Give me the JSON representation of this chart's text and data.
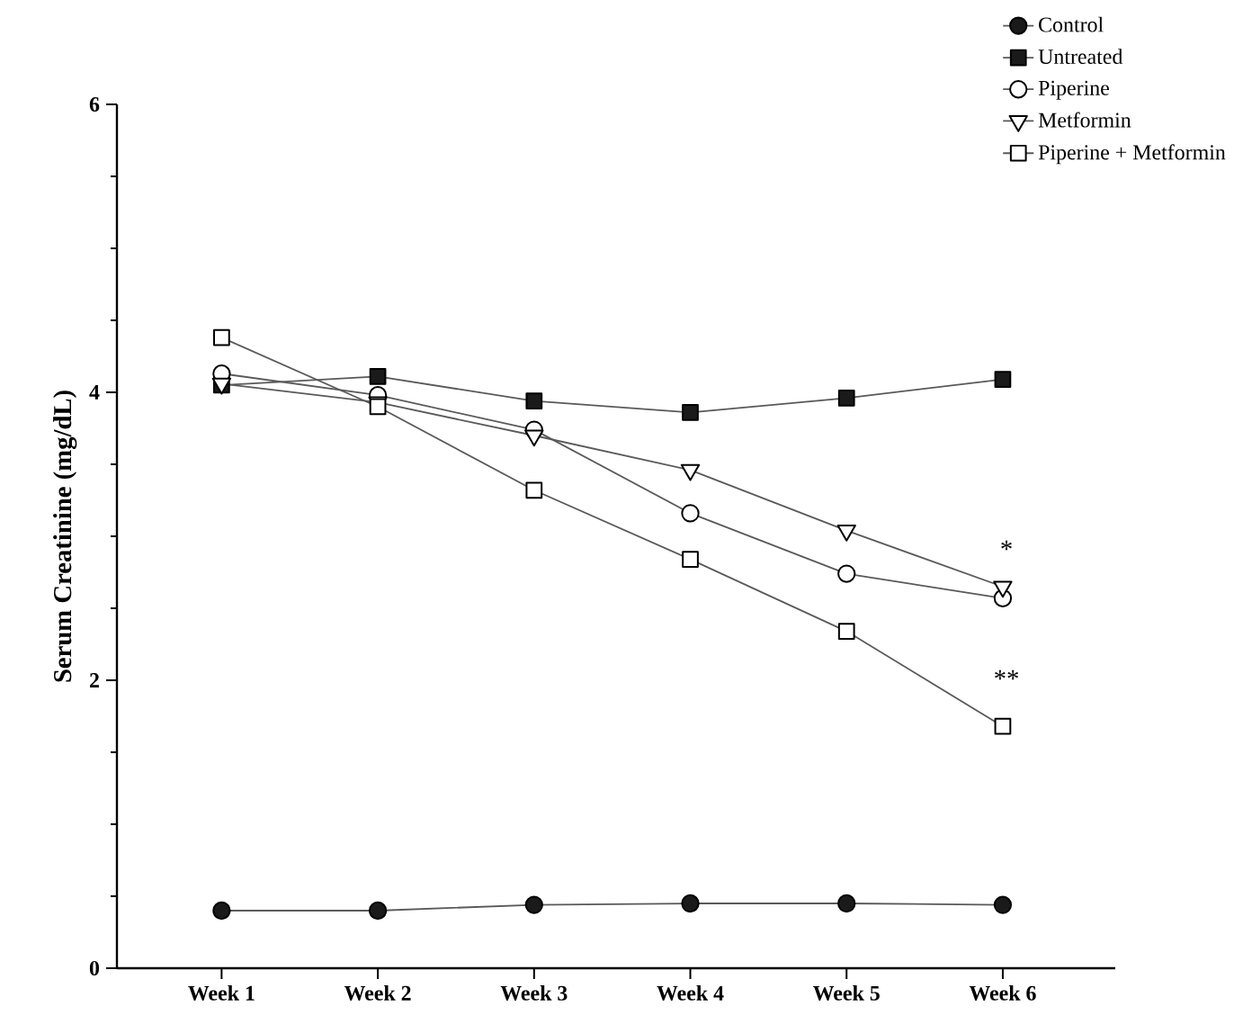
{
  "chart_data": {
    "type": "line",
    "ylabel": "Serum Creatinine (mg/dL)",
    "categories": [
      "Week 1",
      "Week 2",
      "Week 3",
      "Week 4",
      "Week 5",
      "Week 6"
    ],
    "series": [
      {
        "name": "Control",
        "color": "#1a1a1a",
        "marker": "circle",
        "values": [
          0.4,
          0.4,
          0.44,
          0.45,
          0.45,
          0.44
        ]
      },
      {
        "name": "Untreated",
        "color": "#1a1a1a",
        "marker": "square",
        "values": [
          4.05,
          4.11,
          3.94,
          3.86,
          3.96,
          4.09
        ]
      },
      {
        "name": "Piperine",
        "color": "#ffffff",
        "marker": "circle",
        "values": [
          4.13,
          3.98,
          3.74,
          3.16,
          2.74,
          2.57
        ]
      },
      {
        "name": "Metformin",
        "color": "#ffffff",
        "marker": "triangle",
        "values": [
          4.06,
          3.93,
          3.7,
          3.46,
          3.04,
          2.65
        ]
      },
      {
        "name": "Piperine + Metformin",
        "color": "#ffffff",
        "marker": "square",
        "values": [
          4.38,
          3.9,
          3.32,
          2.84,
          2.34,
          1.68
        ]
      }
    ],
    "annotations": [
      "*",
      "**"
    ],
    "ylim": [
      0,
      6
    ],
    "yticks": [
      0,
      2,
      4,
      6
    ],
    "grid": false,
    "legend": "top right",
    "line_style": "solid"
  }
}
